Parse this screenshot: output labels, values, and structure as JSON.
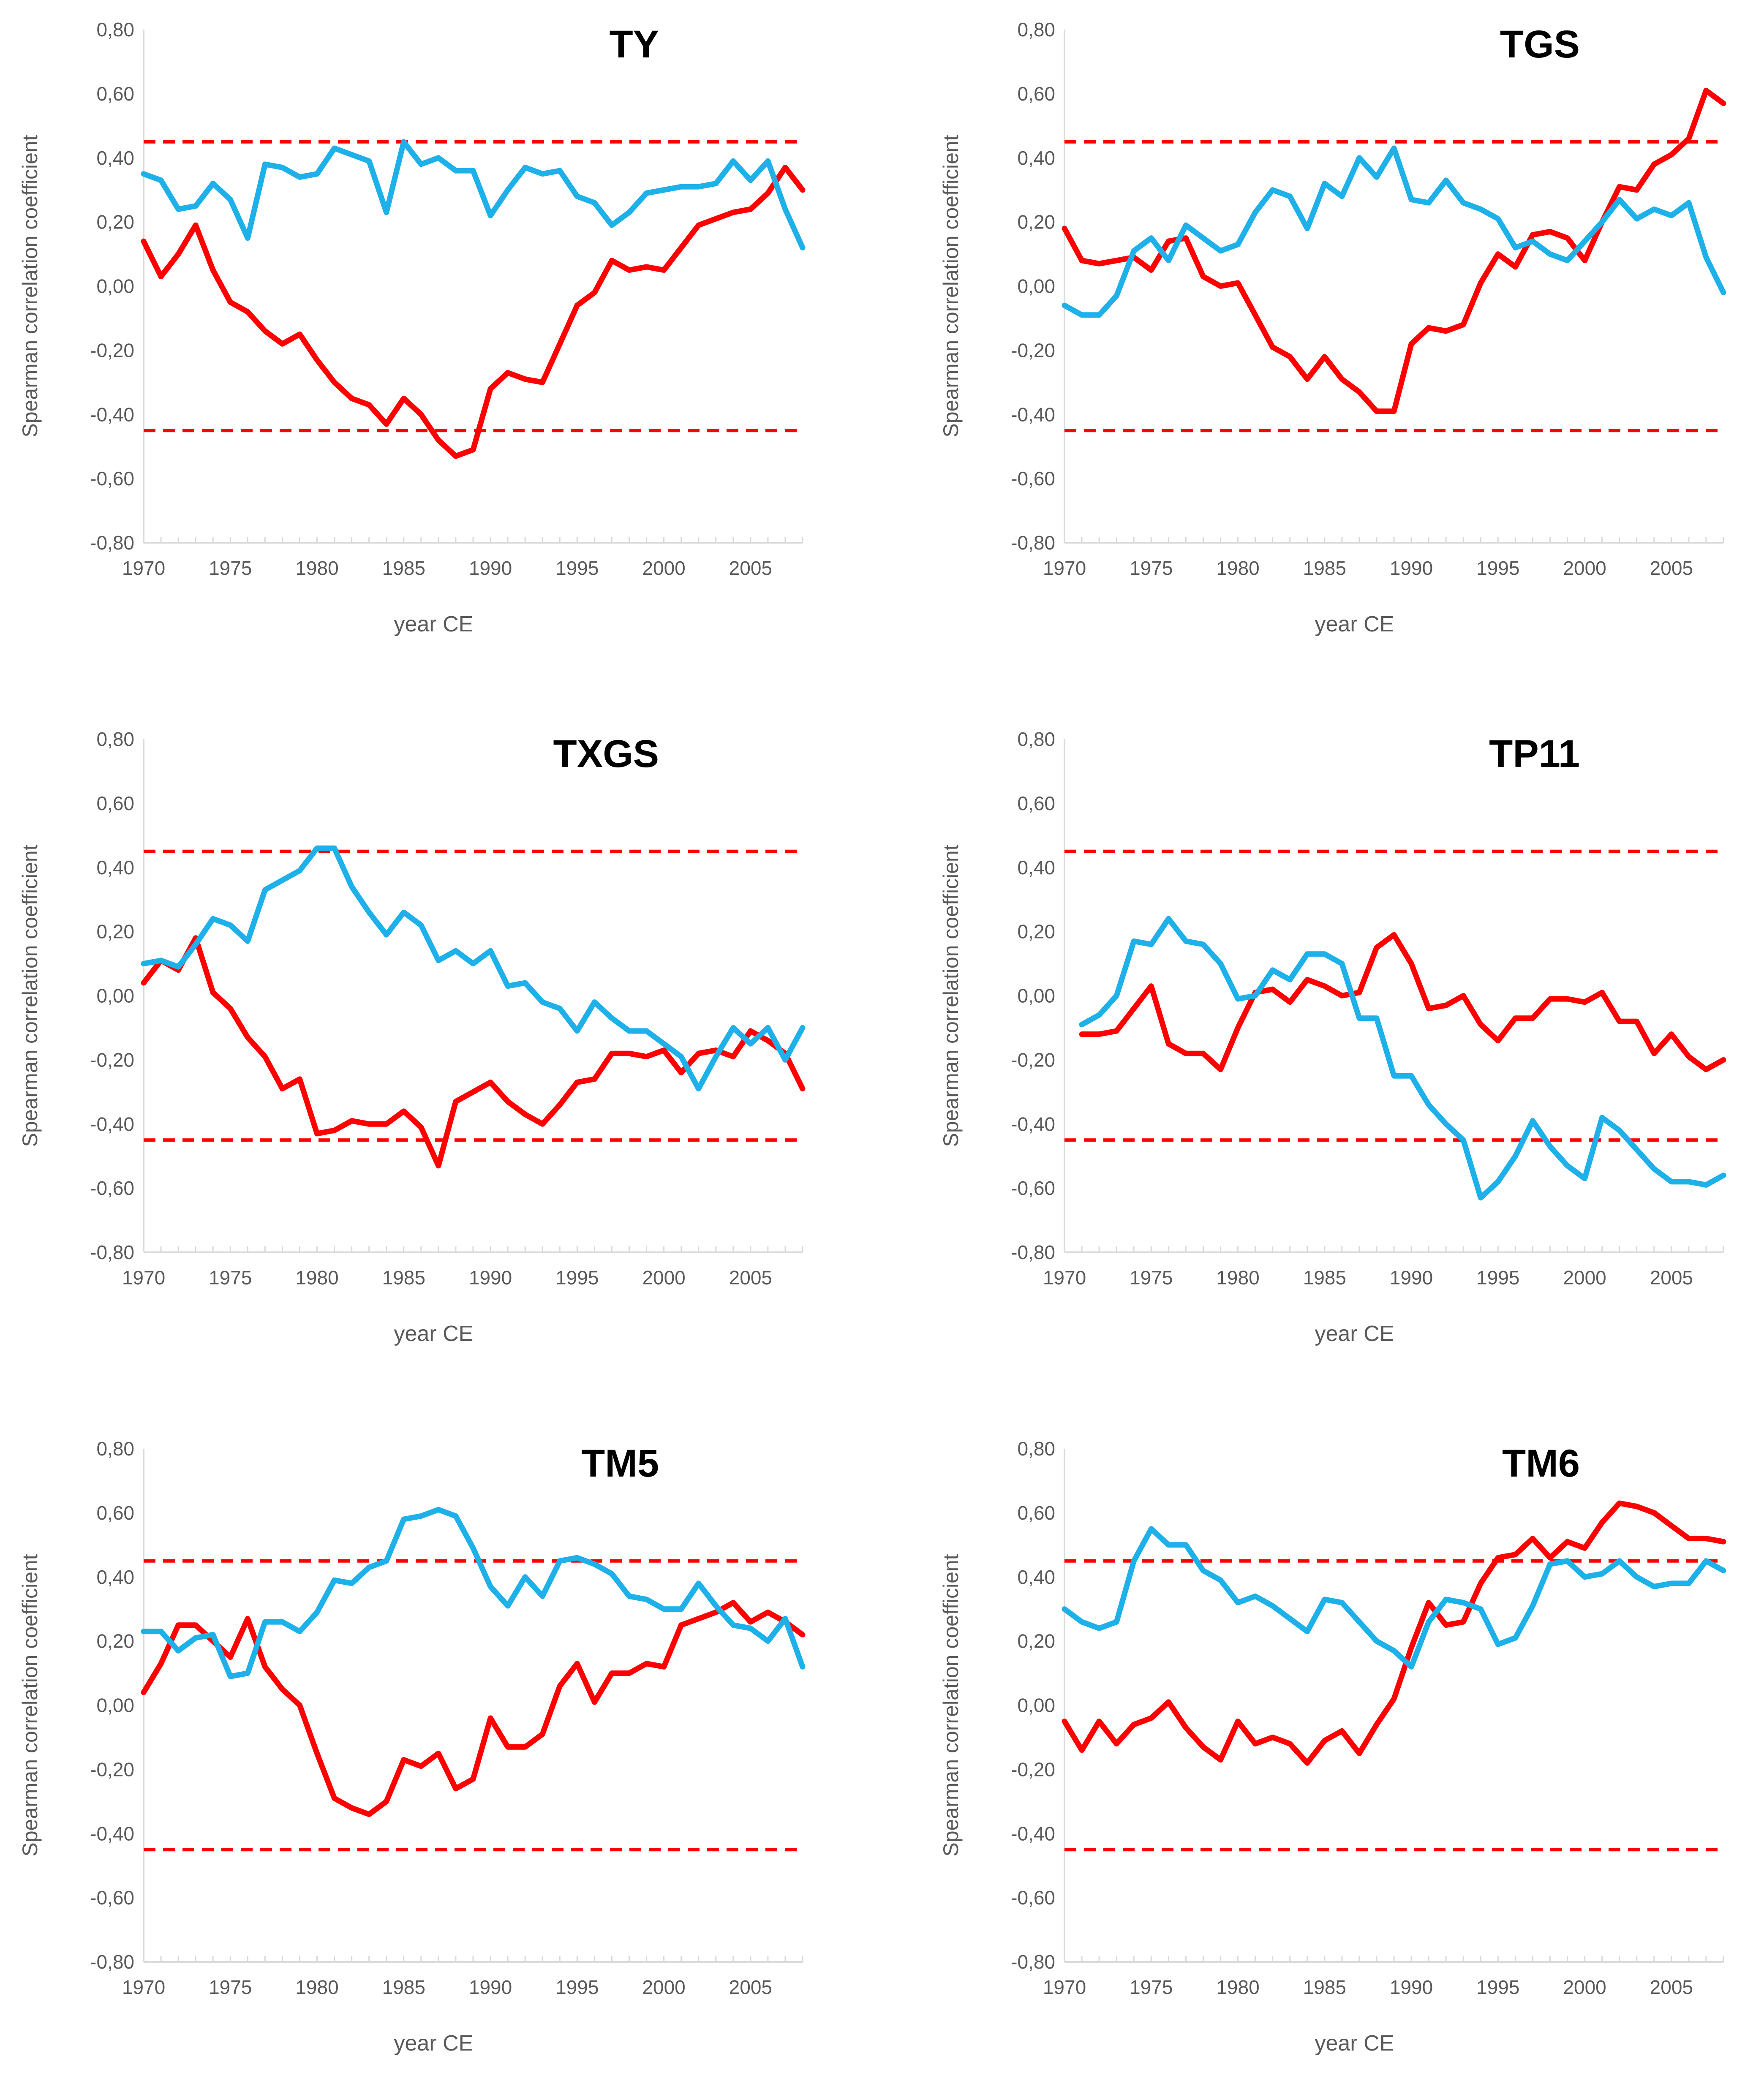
{
  "colors": {
    "red": "#ff0000",
    "blue": "#1eb0e8",
    "axis": "#d9d9d9",
    "text": "#595959"
  },
  "chart_data": [
    {
      "type": "line",
      "title": "TY",
      "xlabel": "year CE",
      "ylabel": "Spearman correlation coefficient",
      "xlim": [
        1970,
        2008
      ],
      "ylim": [
        -0.8,
        0.8
      ],
      "x_ticks": [
        1970,
        1975,
        1980,
        1985,
        1990,
        1995,
        2000,
        2005
      ],
      "x_tick_labels": [
        "1970",
        "1975",
        "1980",
        "1985",
        "1990",
        "1995",
        "2000",
        "2005"
      ],
      "y_tick_labels": [
        "0,80",
        "0,60",
        "0,40",
        "0,20",
        "0,00",
        "-0,20",
        "-0,40",
        "-0,60",
        "-0,80"
      ],
      "threshold_lines": [
        0.45,
        -0.45
      ],
      "series": [
        {
          "name": "red",
          "color": "#ff0000",
          "x_start": 1970,
          "values": [
            0.14,
            0.03,
            0.1,
            0.19,
            0.05,
            -0.05,
            -0.08,
            -0.14,
            -0.18,
            -0.15,
            -0.23,
            -0.3,
            -0.35,
            -0.37,
            -0.43,
            -0.35,
            -0.4,
            -0.48,
            -0.53,
            -0.51,
            -0.32,
            -0.27,
            -0.29,
            -0.3,
            -0.18,
            -0.06,
            -0.02,
            0.08,
            0.05,
            0.06,
            0.05,
            0.12,
            0.19,
            0.21,
            0.23,
            0.24,
            0.29,
            0.37,
            0.3
          ]
        },
        {
          "name": "blue",
          "color": "#1eb0e8",
          "x_start": 1970,
          "values": [
            0.35,
            0.33,
            0.24,
            0.25,
            0.32,
            0.27,
            0.15,
            0.38,
            0.37,
            0.34,
            0.35,
            0.43,
            0.41,
            0.39,
            0.23,
            0.45,
            0.38,
            0.4,
            0.36,
            0.36,
            0.22,
            0.3,
            0.37,
            0.35,
            0.36,
            0.28,
            0.26,
            0.19,
            0.23,
            0.29,
            0.3,
            0.31,
            0.31,
            0.32,
            0.39,
            0.33,
            0.39,
            0.24,
            0.12
          ]
        }
      ]
    },
    {
      "type": "line",
      "title": "TGS",
      "xlabel": "year CE",
      "ylabel": "Spearman correlation coefficient",
      "xlim": [
        1970,
        2008
      ],
      "ylim": [
        -0.8,
        0.8
      ],
      "x_ticks": [
        1970,
        1975,
        1980,
        1985,
        1990,
        1995,
        2000,
        2005
      ],
      "x_tick_labels": [
        "1970",
        "1975",
        "1980",
        "1985",
        "1990",
        "1995",
        "2000",
        "2005"
      ],
      "y_tick_labels": [
        "0,80",
        "0,60",
        "0,40",
        "0,20",
        "0,00",
        "-0,20",
        "-0,40",
        "-0,60",
        "-0,80"
      ],
      "threshold_lines": [
        0.45,
        -0.45
      ],
      "series": [
        {
          "name": "red",
          "color": "#ff0000",
          "x_start": 1970,
          "values": [
            0.18,
            0.08,
            0.07,
            0.08,
            0.09,
            0.05,
            0.14,
            0.15,
            0.03,
            0.0,
            0.01,
            -0.09,
            -0.19,
            -0.22,
            -0.29,
            -0.22,
            -0.29,
            -0.33,
            -0.39,
            -0.39,
            -0.18,
            -0.13,
            -0.14,
            -0.12,
            0.01,
            0.1,
            0.06,
            0.16,
            0.17,
            0.15,
            0.08,
            0.2,
            0.31,
            0.3,
            0.38,
            0.41,
            0.46,
            0.61,
            0.57
          ]
        },
        {
          "name": "blue",
          "color": "#1eb0e8",
          "x_start": 1970,
          "values": [
            -0.06,
            -0.09,
            -0.09,
            -0.03,
            0.11,
            0.15,
            0.08,
            0.19,
            0.15,
            0.11,
            0.13,
            0.23,
            0.3,
            0.28,
            0.18,
            0.32,
            0.28,
            0.4,
            0.34,
            0.43,
            0.27,
            0.26,
            0.33,
            0.26,
            0.24,
            0.21,
            0.12,
            0.14,
            0.1,
            0.08,
            0.14,
            0.2,
            0.27,
            0.21,
            0.24,
            0.22,
            0.26,
            0.09,
            -0.02
          ]
        }
      ]
    },
    {
      "type": "line",
      "title": "TXGS",
      "xlabel": "year CE",
      "ylabel": "Spearman correlation coefficient",
      "xlim": [
        1970,
        2008
      ],
      "ylim": [
        -0.8,
        0.8
      ],
      "x_ticks": [
        1970,
        1975,
        1980,
        1985,
        1990,
        1995,
        2000,
        2005
      ],
      "x_tick_labels": [
        "1970",
        "1975",
        "1980",
        "1985",
        "1990",
        "1995",
        "2000",
        "2005"
      ],
      "y_tick_labels": [
        "0,80",
        "0,60",
        "0,40",
        "0,20",
        "0,00",
        "-0,20",
        "-0,40",
        "-0,60",
        "-0,80"
      ],
      "threshold_lines": [
        0.45,
        -0.45
      ],
      "series": [
        {
          "name": "red",
          "color": "#ff0000",
          "x_start": 1970,
          "values": [
            0.04,
            0.11,
            0.08,
            0.18,
            0.01,
            -0.04,
            -0.13,
            -0.19,
            -0.29,
            -0.26,
            -0.43,
            -0.42,
            -0.39,
            -0.4,
            -0.4,
            -0.36,
            -0.41,
            -0.53,
            -0.33,
            -0.3,
            -0.27,
            -0.33,
            -0.37,
            -0.4,
            -0.34,
            -0.27,
            -0.26,
            -0.18,
            -0.18,
            -0.19,
            -0.17,
            -0.24,
            -0.18,
            -0.17,
            -0.19,
            -0.11,
            -0.14,
            -0.18,
            -0.29
          ]
        },
        {
          "name": "blue",
          "color": "#1eb0e8",
          "x_start": 1970,
          "values": [
            0.1,
            0.11,
            0.09,
            0.16,
            0.24,
            0.22,
            0.17,
            0.33,
            0.36,
            0.39,
            0.46,
            0.46,
            0.34,
            0.26,
            0.19,
            0.26,
            0.22,
            0.11,
            0.14,
            0.1,
            0.14,
            0.03,
            0.04,
            -0.02,
            -0.04,
            -0.11,
            -0.02,
            -0.07,
            -0.11,
            -0.11,
            -0.15,
            -0.19,
            -0.29,
            -0.19,
            -0.1,
            -0.15,
            -0.1,
            -0.2,
            -0.1
          ]
        }
      ]
    },
    {
      "type": "line",
      "title": "TP11",
      "xlabel": "year CE",
      "ylabel": "Spearman correlation coefficient",
      "xlim": [
        1970,
        2008
      ],
      "ylim": [
        -0.8,
        0.8
      ],
      "x_ticks": [
        1970,
        1975,
        1980,
        1985,
        1990,
        1995,
        2000,
        2005
      ],
      "x_tick_labels": [
        "1970",
        "1975",
        "1980",
        "1985",
        "1990",
        "1995",
        "2000",
        "2005"
      ],
      "y_tick_labels": [
        "0,80",
        "0,60",
        "0,40",
        "0,20",
        "0,00",
        "-0,20",
        "-0,40",
        "-0,60",
        "-0,80"
      ],
      "threshold_lines": [
        0.45,
        -0.45
      ],
      "series": [
        {
          "name": "red",
          "color": "#ff0000",
          "x_start": 1971,
          "values": [
            -0.12,
            -0.12,
            -0.11,
            -0.04,
            0.03,
            -0.15,
            -0.18,
            -0.18,
            -0.23,
            -0.1,
            0.01,
            0.02,
            -0.02,
            0.05,
            0.03,
            0.0,
            0.01,
            0.15,
            0.19,
            0.1,
            -0.04,
            -0.03,
            0.0,
            -0.09,
            -0.14,
            -0.07,
            -0.07,
            -0.01,
            -0.01,
            -0.02,
            0.01,
            -0.08,
            -0.08,
            -0.18,
            -0.12,
            -0.19,
            -0.23,
            -0.2
          ]
        },
        {
          "name": "blue",
          "color": "#1eb0e8",
          "x_start": 1971,
          "values": [
            -0.09,
            -0.06,
            0.0,
            0.17,
            0.16,
            0.24,
            0.17,
            0.16,
            0.1,
            -0.01,
            0.0,
            0.08,
            0.05,
            0.13,
            0.13,
            0.1,
            -0.07,
            -0.07,
            -0.25,
            -0.25,
            -0.34,
            -0.4,
            -0.45,
            -0.63,
            -0.58,
            -0.5,
            -0.39,
            -0.47,
            -0.53,
            -0.57,
            -0.38,
            -0.42,
            -0.48,
            -0.54,
            -0.58,
            -0.58,
            -0.59,
            -0.56
          ]
        }
      ]
    },
    {
      "type": "line",
      "title": "TM5",
      "xlabel": "year CE",
      "ylabel": "Spearman correlation coefficient",
      "xlim": [
        1970,
        2008
      ],
      "ylim": [
        -0.8,
        0.8
      ],
      "x_ticks": [
        1970,
        1975,
        1980,
        1985,
        1990,
        1995,
        2000,
        2005
      ],
      "x_tick_labels": [
        "1970",
        "1975",
        "1980",
        "1985",
        "1990",
        "1995",
        "2000",
        "2005"
      ],
      "y_tick_labels": [
        "0,80",
        "0,60",
        "0,40",
        "0,20",
        "0,00",
        "-0,20",
        "-0,40",
        "-0,60",
        "-0,80"
      ],
      "threshold_lines": [
        0.45,
        -0.45
      ],
      "series": [
        {
          "name": "red",
          "color": "#ff0000",
          "x_start": 1970,
          "values": [
            0.04,
            0.13,
            0.25,
            0.25,
            0.2,
            0.15,
            0.27,
            0.12,
            0.05,
            0.0,
            -0.15,
            -0.29,
            -0.32,
            -0.34,
            -0.3,
            -0.17,
            -0.19,
            -0.15,
            -0.26,
            -0.23,
            -0.04,
            -0.13,
            -0.13,
            -0.09,
            0.06,
            0.13,
            0.01,
            0.1,
            0.1,
            0.13,
            0.12,
            0.25,
            0.27,
            0.29,
            0.32,
            0.26,
            0.29,
            0.26,
            0.22
          ]
        },
        {
          "name": "blue",
          "color": "#1eb0e8",
          "x_start": 1970,
          "values": [
            0.23,
            0.23,
            0.17,
            0.21,
            0.22,
            0.09,
            0.1,
            0.26,
            0.26,
            0.23,
            0.29,
            0.39,
            0.38,
            0.43,
            0.45,
            0.58,
            0.59,
            0.61,
            0.59,
            0.49,
            0.37,
            0.31,
            0.4,
            0.34,
            0.45,
            0.46,
            0.44,
            0.41,
            0.34,
            0.33,
            0.3,
            0.3,
            0.38,
            0.31,
            0.25,
            0.24,
            0.2,
            0.27,
            0.12
          ]
        }
      ]
    },
    {
      "type": "line",
      "title": "TM6",
      "xlabel": "year CE",
      "ylabel": "Spearman correlation coefficient",
      "xlim": [
        1970,
        2008
      ],
      "ylim": [
        -0.8,
        0.8
      ],
      "x_ticks": [
        1970,
        1975,
        1980,
        1985,
        1990,
        1995,
        2000,
        2005
      ],
      "x_tick_labels": [
        "1970",
        "1975",
        "1980",
        "1985",
        "1990",
        "1995",
        "2000",
        "2005"
      ],
      "y_tick_labels": [
        "0,80",
        "0,60",
        "0,40",
        "0,20",
        "0,00",
        "-0,20",
        "-0,40",
        "-0,60",
        "-0,80"
      ],
      "threshold_lines": [
        0.45,
        -0.45
      ],
      "series": [
        {
          "name": "red",
          "color": "#ff0000",
          "x_start": 1970,
          "values": [
            -0.05,
            -0.14,
            -0.05,
            -0.12,
            -0.06,
            -0.04,
            0.01,
            -0.07,
            -0.13,
            -0.17,
            -0.05,
            -0.12,
            -0.1,
            -0.12,
            -0.18,
            -0.11,
            -0.08,
            -0.15,
            -0.06,
            0.02,
            0.18,
            0.32,
            0.25,
            0.26,
            0.38,
            0.46,
            0.47,
            0.52,
            0.46,
            0.51,
            0.49,
            0.57,
            0.63,
            0.62,
            0.6,
            0.56,
            0.52,
            0.52,
            0.51
          ]
        },
        {
          "name": "blue",
          "color": "#1eb0e8",
          "x_start": 1970,
          "values": [
            0.3,
            0.26,
            0.24,
            0.26,
            0.45,
            0.55,
            0.5,
            0.5,
            0.42,
            0.39,
            0.32,
            0.34,
            0.31,
            0.27,
            0.23,
            0.33,
            0.32,
            0.26,
            0.2,
            0.17,
            0.12,
            0.26,
            0.33,
            0.32,
            0.3,
            0.19,
            0.21,
            0.31,
            0.44,
            0.45,
            0.4,
            0.41,
            0.45,
            0.4,
            0.37,
            0.38,
            0.38,
            0.45,
            0.42
          ]
        }
      ]
    }
  ]
}
